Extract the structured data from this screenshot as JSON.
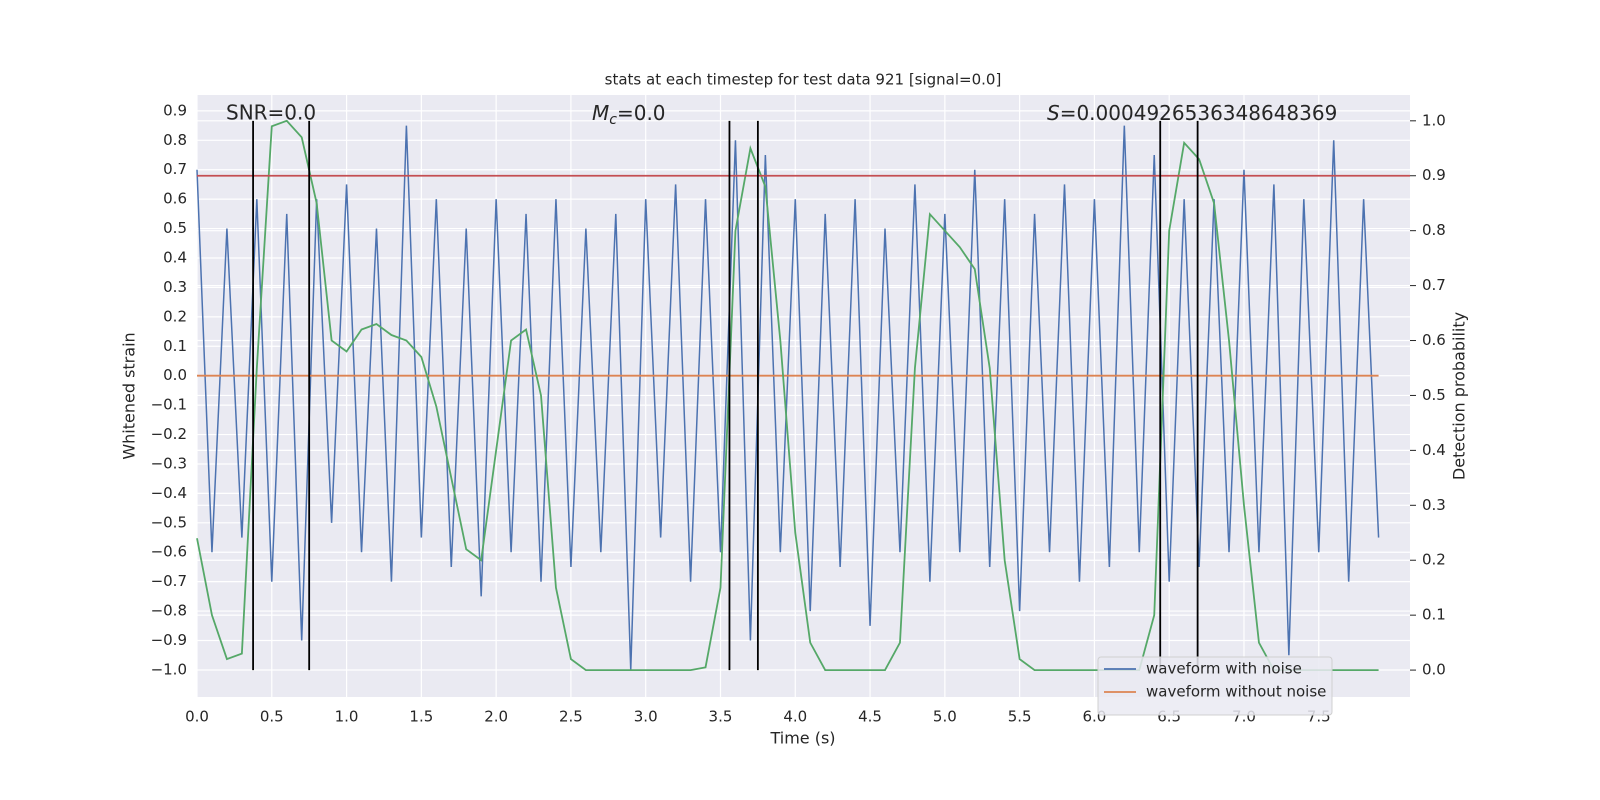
{
  "chart_data": {
    "type": "line",
    "title": "stats at each timestep for test data 921 [signal=0.0]",
    "xlabel": "Time (s)",
    "ylabel": "Whitened strain",
    "y2label": "Detection probability",
    "annotations": [
      "SNR=0.0",
      {
        "symbol": "M",
        "subscript": "c",
        "text": "=0.0"
      },
      {
        "symbol": "S",
        "text": "=0.0004926536348648369"
      }
    ],
    "x": [
      0.0,
      0.1,
      0.2,
      0.3,
      0.4,
      0.5,
      0.6,
      0.7,
      0.8,
      0.9,
      1.0,
      1.1,
      1.2,
      1.3,
      1.4,
      1.5,
      1.6,
      1.7,
      1.8,
      1.9,
      2.0,
      2.1,
      2.2,
      2.3,
      2.4,
      2.5,
      2.6,
      2.7,
      2.8,
      2.9,
      3.0,
      3.1,
      3.2,
      3.3,
      3.4,
      3.5,
      3.6,
      3.7,
      3.8,
      3.9,
      4.0,
      4.1,
      4.2,
      4.3,
      4.4,
      4.5,
      4.6,
      4.7,
      4.8,
      4.9,
      5.0,
      5.1,
      5.2,
      5.3,
      5.4,
      5.5,
      5.6,
      5.7,
      5.8,
      5.9,
      6.0,
      6.1,
      6.2,
      6.3,
      6.4,
      6.5,
      6.6,
      6.7,
      6.8,
      6.9,
      7.0,
      7.1,
      7.2,
      7.3,
      7.4,
      7.5,
      7.6,
      7.7,
      7.8,
      7.9
    ],
    "series": [
      {
        "name": "waveform with noise",
        "color": "#4c72b0",
        "values": [
          0.7,
          -0.6,
          0.5,
          -0.55,
          0.6,
          -0.7,
          0.55,
          -0.9,
          0.6,
          -0.5,
          0.65,
          -0.6,
          0.5,
          -0.7,
          0.85,
          -0.55,
          0.6,
          -0.65,
          0.5,
          -0.75,
          0.6,
          -0.6,
          0.55,
          -0.7,
          0.6,
          -0.65,
          0.5,
          -0.6,
          0.55,
          -1.0,
          0.6,
          -0.55,
          0.65,
          -0.7,
          0.6,
          -0.6,
          0.8,
          -0.9,
          0.75,
          -0.6,
          0.6,
          -0.8,
          0.55,
          -0.65,
          0.6,
          -0.85,
          0.5,
          -0.6,
          0.65,
          -0.7,
          0.55,
          -0.6,
          0.7,
          -0.65,
          0.6,
          -0.8,
          0.55,
          -0.6,
          0.65,
          -0.7,
          0.6,
          -0.65,
          0.85,
          -0.6,
          0.75,
          -0.7,
          0.6,
          -0.65,
          0.6,
          -0.6,
          0.7,
          -0.6,
          0.65,
          -0.95,
          0.6,
          -0.6,
          0.8,
          -0.7,
          0.6,
          -0.55
        ]
      },
      {
        "name": "waveform without noise",
        "color": "#dd8452",
        "values": [
          0,
          0,
          0,
          0,
          0,
          0,
          0,
          0,
          0,
          0,
          0,
          0,
          0,
          0,
          0,
          0,
          0,
          0,
          0,
          0,
          0,
          0,
          0,
          0,
          0,
          0,
          0,
          0,
          0,
          0,
          0,
          0,
          0,
          0,
          0,
          0,
          0,
          0,
          0,
          0,
          0,
          0,
          0,
          0,
          0,
          0,
          0,
          0,
          0,
          0,
          0,
          0,
          0,
          0,
          0,
          0,
          0,
          0,
          0,
          0,
          0,
          0,
          0,
          0,
          0,
          0,
          0,
          0,
          0,
          0,
          0,
          0,
          0,
          0,
          0,
          0,
          0,
          0,
          0,
          0
        ]
      },
      {
        "color": "#55a868",
        "axis": "y2",
        "values": [
          0.24,
          0.1,
          0.02,
          0.03,
          0.55,
          0.99,
          1.0,
          0.97,
          0.85,
          0.6,
          0.58,
          0.62,
          0.63,
          0.61,
          0.6,
          0.57,
          0.48,
          0.35,
          0.22,
          0.2,
          0.4,
          0.6,
          0.62,
          0.5,
          0.15,
          0.02,
          0,
          0,
          0,
          0,
          0,
          0,
          0,
          0,
          0.005,
          0.15,
          0.8,
          0.95,
          0.88,
          0.6,
          0.25,
          0.05,
          0,
          0,
          0,
          0,
          0,
          0.05,
          0.55,
          0.83,
          0.8,
          0.77,
          0.73,
          0.55,
          0.2,
          0.02,
          0,
          0,
          0,
          0,
          0,
          0,
          0,
          0,
          0.1,
          0.8,
          0.96,
          0.93,
          0.85,
          0.6,
          0.3,
          0.05,
          0,
          0,
          0,
          0,
          0,
          0,
          0,
          0
        ]
      }
    ],
    "hlines": [
      {
        "value": 0.9,
        "axis": "y2",
        "color": "#c44e52"
      }
    ],
    "vlines": [
      {
        "x": 0.375,
        "ymin": 0,
        "ymax": 1
      },
      {
        "x": 0.75,
        "ymin": 0,
        "ymax": 1
      },
      {
        "x": 3.56,
        "ymin": 0,
        "ymax": 1
      },
      {
        "x": 3.75,
        "ymin": 0,
        "ymax": 1
      },
      {
        "x": 6.44,
        "ymin": 0,
        "ymax": 1
      },
      {
        "x": 6.69,
        "ymin": 0,
        "ymax": 1
      }
    ],
    "vline_color": "#000000",
    "xlim": [
      0,
      8.11
    ],
    "ylim": [
      -1.092,
      0.954
    ],
    "y2lim": [
      -0.049,
      1.047
    ],
    "xticks": [
      {
        "value": 0,
        "label": "0.0"
      },
      0.5,
      {
        "value": 1,
        "label": "1.0"
      },
      1.5,
      {
        "value": 2,
        "label": "2.0"
      },
      2.5,
      {
        "value": 3,
        "label": "3.0"
      },
      3.5,
      {
        "value": 4,
        "label": "4.0"
      },
      4.5,
      {
        "value": 5,
        "label": "5.0"
      },
      5.5,
      {
        "value": 6,
        "label": "6.0"
      },
      6.5,
      {
        "value": 7,
        "label": "7.0"
      },
      7.5
    ],
    "yticks": [
      {
        "value": -1,
        "label": "−1.0"
      },
      {
        "value": -0.9,
        "label": "−0.9"
      },
      {
        "value": -0.8,
        "label": "−0.8"
      },
      {
        "value": -0.7,
        "label": "−0.7"
      },
      {
        "value": -0.6,
        "label": "−0.6"
      },
      {
        "value": -0.5,
        "label": "−0.5"
      },
      {
        "value": -0.4,
        "label": "−0.4"
      },
      {
        "value": -0.3,
        "label": "−0.3"
      },
      {
        "value": -0.2,
        "label": "−0.2"
      },
      {
        "value": -0.1,
        "label": "−0.1"
      },
      {
        "value": 0,
        "label": "0.0"
      },
      0.1,
      0.2,
      0.3,
      0.4,
      0.5,
      0.6,
      0.7,
      0.8,
      0.9
    ],
    "y2ticks": [
      {
        "value": 0,
        "label": "0.0"
      },
      0.1,
      0.2,
      0.3,
      0.4,
      0.5,
      0.6,
      0.7,
      0.8,
      0.9,
      {
        "value": 1,
        "label": "1.0"
      }
    ],
    "grid": true,
    "legend": "lower right"
  }
}
